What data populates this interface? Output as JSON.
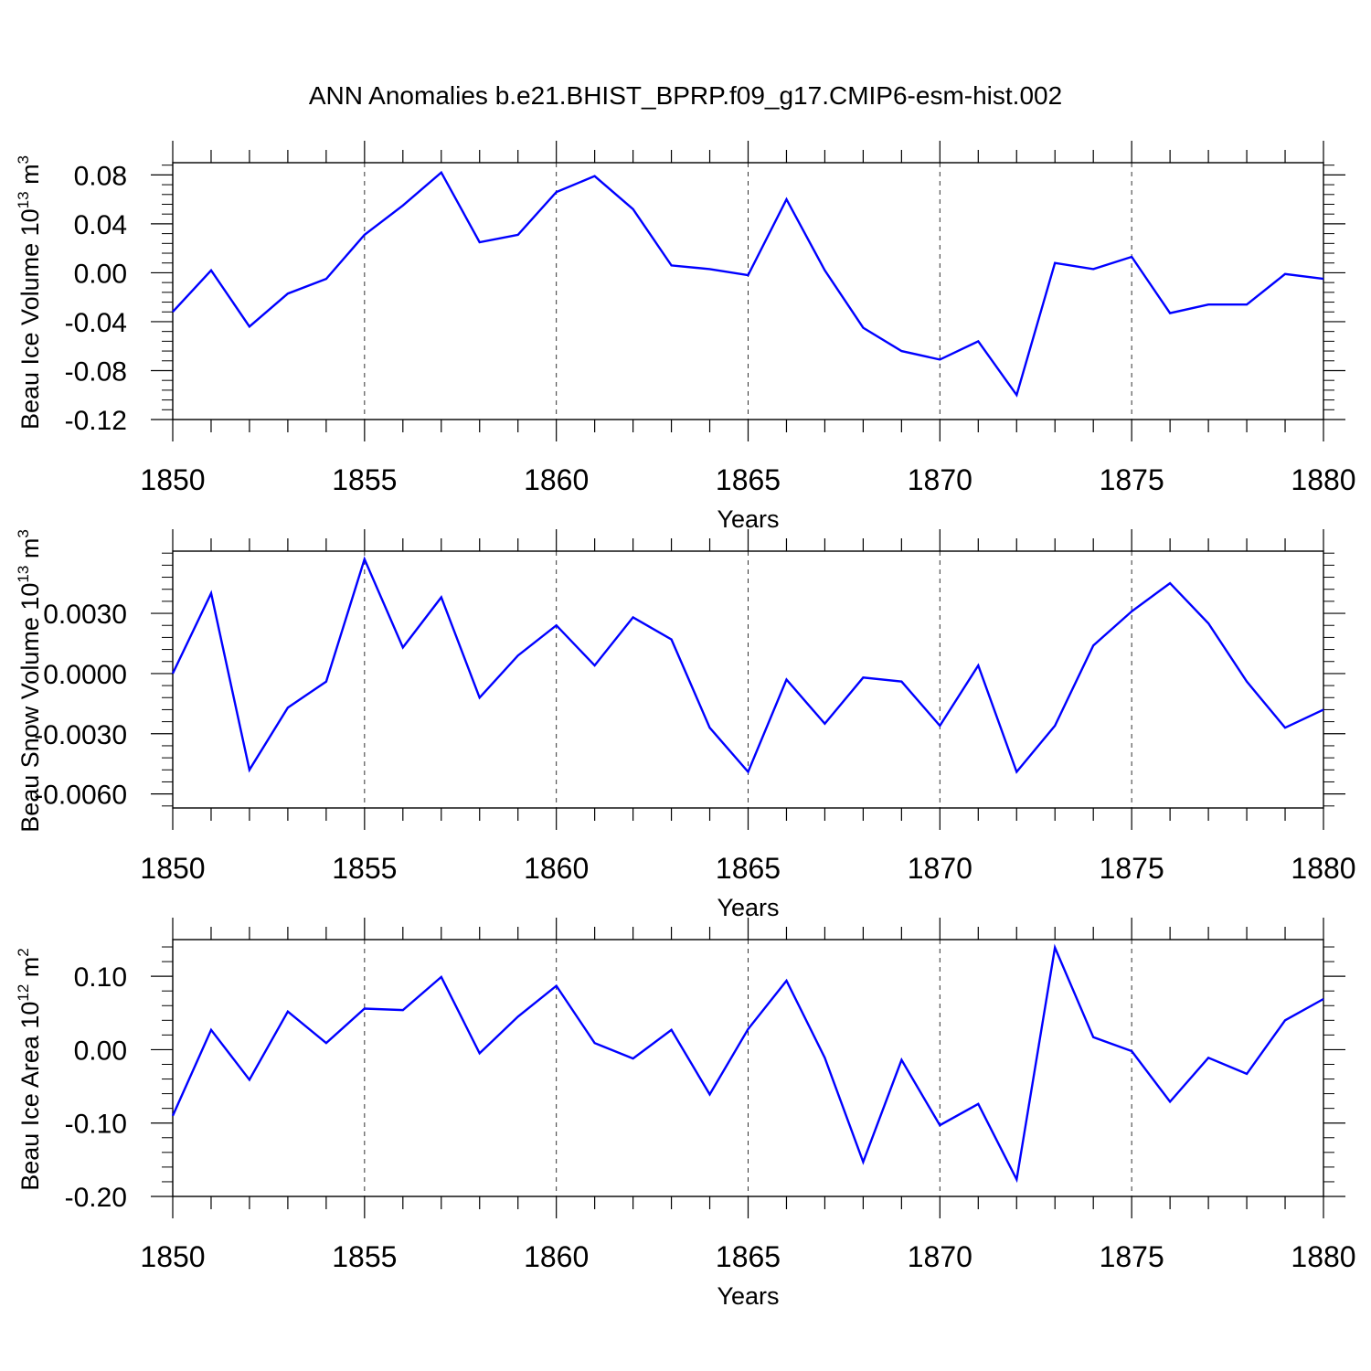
{
  "figure": {
    "title": "ANN Anomalies b.e21.BHIST_BPRP.f09_g17.CMIP6-esm-hist.002"
  },
  "colors": {
    "series": "#0000ff",
    "axis": "#000000",
    "grid": "#000000"
  },
  "chart_data": [
    {
      "type": "line",
      "title": "",
      "xlabel": "Years",
      "ylabel": "Beau Ice Volume 10",
      "ylabel_sup": "13",
      "ylabel_unit": "m",
      "ylabel_unit_sup": "3",
      "xlim": [
        1850,
        1880
      ],
      "ylim": [
        -0.12,
        0.09
      ],
      "xticks": [
        "1850",
        "1855",
        "1860",
        "1865",
        "1870",
        "1875",
        "1880"
      ],
      "yticks": [
        "0.08",
        "0.04",
        "0.00",
        "-0.04",
        "-0.08",
        "-0.12"
      ],
      "grid": "vertical dashed at major x ticks",
      "series": [
        {
          "x": [
            1850,
            1851,
            1852,
            1853,
            1854,
            1855,
            1856,
            1857,
            1858,
            1859,
            1860,
            1861,
            1862,
            1863,
            1864,
            1865,
            1866,
            1867,
            1868,
            1869,
            1870,
            1871,
            1872,
            1873,
            1874,
            1875,
            1876,
            1877,
            1878,
            1879,
            1880
          ],
          "values": [
            -0.032,
            0.002,
            -0.044,
            -0.017,
            -0.005,
            0.031,
            0.055,
            0.082,
            0.025,
            0.031,
            0.066,
            0.079,
            0.052,
            0.006,
            0.003,
            -0.002,
            0.06,
            0.002,
            -0.045,
            -0.064,
            -0.071,
            -0.056,
            -0.1,
            0.008,
            0.003,
            0.013,
            -0.033,
            -0.026,
            -0.026,
            -0.001,
            -0.005
          ]
        }
      ]
    },
    {
      "type": "line",
      "title": "",
      "xlabel": "Years",
      "ylabel": "Beau Snow Volume 10",
      "ylabel_sup": "13",
      "ylabel_unit": "m",
      "ylabel_unit_sup": "3",
      "xlim": [
        1850,
        1880
      ],
      "ylim": [
        -0.0067,
        0.0061
      ],
      "xticks": [
        "1850",
        "1855",
        "1860",
        "1865",
        "1870",
        "1875",
        "1880"
      ],
      "yticks": [
        "0.0030",
        "0.0000",
        "-0.0030",
        "-0.0060"
      ],
      "grid": "vertical dashed at major x ticks",
      "series": [
        {
          "x": [
            1850,
            1851,
            1852,
            1853,
            1854,
            1855,
            1856,
            1857,
            1858,
            1859,
            1860,
            1861,
            1862,
            1863,
            1864,
            1865,
            1866,
            1867,
            1868,
            1869,
            1870,
            1871,
            1872,
            1873,
            1874,
            1875,
            1876,
            1877,
            1878,
            1879,
            1880
          ],
          "values": [
            0.0,
            0.004,
            -0.0048,
            -0.0017,
            -0.0004,
            0.0057,
            0.0013,
            0.0038,
            -0.0012,
            0.0009,
            0.0024,
            0.0004,
            0.0028,
            0.0017,
            -0.0027,
            -0.0049,
            -0.0003,
            -0.0025,
            -0.0002,
            -0.0004,
            -0.0026,
            0.0004,
            -0.0049,
            -0.0026,
            0.0014,
            0.0031,
            0.0045,
            0.0025,
            -0.0004,
            -0.0027,
            -0.0018
          ]
        }
      ]
    },
    {
      "type": "line",
      "title": "",
      "xlabel": "Years",
      "ylabel": "Beau Ice Area 10",
      "ylabel_sup": "12",
      "ylabel_unit": "m",
      "ylabel_unit_sup": "2",
      "xlim": [
        1850,
        1880
      ],
      "ylim": [
        -0.2,
        0.15
      ],
      "xticks": [
        "1850",
        "1855",
        "1860",
        "1865",
        "1870",
        "1875",
        "1880"
      ],
      "yticks": [
        "0.10",
        "0.00",
        "-0.10",
        "-0.20"
      ],
      "grid": "vertical dashed at major x ticks",
      "series": [
        {
          "x": [
            1850,
            1851,
            1852,
            1853,
            1854,
            1855,
            1856,
            1857,
            1858,
            1859,
            1860,
            1861,
            1862,
            1863,
            1864,
            1865,
            1866,
            1867,
            1868,
            1869,
            1870,
            1871,
            1872,
            1873,
            1874,
            1875,
            1876,
            1877,
            1878,
            1879,
            1880
          ],
          "values": [
            -0.09,
            0.027,
            -0.041,
            0.052,
            0.009,
            0.056,
            0.054,
            0.099,
            -0.005,
            0.045,
            0.087,
            0.009,
            -0.012,
            0.027,
            -0.061,
            0.028,
            0.094,
            -0.011,
            -0.153,
            -0.014,
            -0.103,
            -0.074,
            -0.177,
            0.139,
            0.017,
            -0.002,
            -0.071,
            -0.011,
            -0.033,
            0.04,
            0.069
          ]
        }
      ]
    }
  ]
}
